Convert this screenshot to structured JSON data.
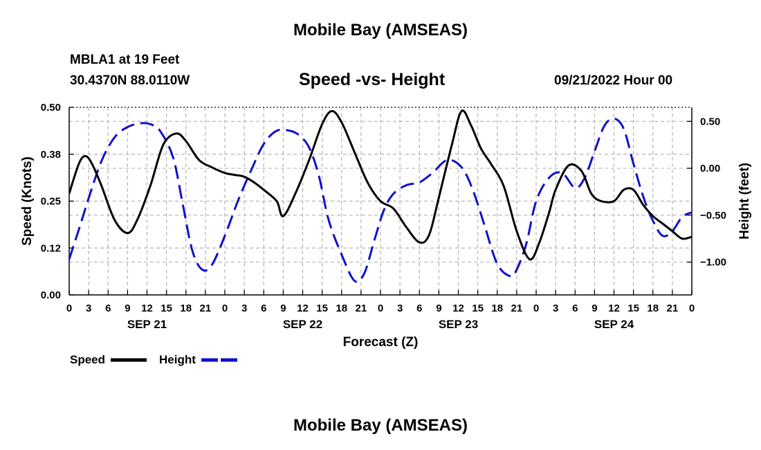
{
  "header": {
    "title": "Mobile Bay (AMSEAS)",
    "station": "MBLA1 at 19 Feet",
    "location": "30.4370N  88.0110W",
    "chart_title": "Speed -vs- Height",
    "datetime": "09/21/2022 Hour 00"
  },
  "footer": {
    "title": "Mobile Bay (AMSEAS)"
  },
  "colors": {
    "speed": "#000000",
    "height": "#1010cc",
    "grid": "#b4b4b4"
  },
  "chart_data": {
    "type": "line",
    "title": "Speed -vs- Height",
    "xlabel": "Forecast (Z)",
    "ylabel": "Speed (Knots)",
    "y2label": "Height (feet)",
    "xlim": [
      0,
      96
    ],
    "ylim": [
      0,
      0.5
    ],
    "y2lim": [
      -1.35,
      0.65
    ],
    "x_tick_labels": [
      "0",
      "3",
      "6",
      "9",
      "12",
      "15",
      "18",
      "21",
      "0",
      "3",
      "6",
      "9",
      "12",
      "15",
      "18",
      "21",
      "0",
      "3",
      "6",
      "9",
      "12",
      "15",
      "18",
      "21",
      "0",
      "3",
      "6",
      "9",
      "12",
      "15",
      "18",
      "21",
      "0"
    ],
    "day_labels": [
      {
        "x": 12,
        "label": "SEP 21"
      },
      {
        "x": 36,
        "label": "SEP 22"
      },
      {
        "x": 60,
        "label": "SEP 23"
      },
      {
        "x": 84,
        "label": "SEP 24"
      }
    ],
    "y_ticks": [
      "0.00",
      "0.12",
      "0.25",
      "0.38",
      "0.50"
    ],
    "y_tick_values": [
      0,
      0.125,
      0.25,
      0.375,
      0.5
    ],
    "y2_ticks": [
      "0.50",
      "0.00",
      "−0.50",
      "−1.00"
    ],
    "y2_tick_values": [
      0.5,
      0,
      -0.5,
      -1.0
    ],
    "grid": true,
    "legend_position": "bottom-left",
    "series": [
      {
        "name": "Speed",
        "axis": "left",
        "style": "solid",
        "x": [
          0,
          1.5,
          2.5,
          3.5,
          5,
          7,
          9,
          10.5,
          12.5,
          14.5,
          16.5,
          18,
          20,
          22,
          24,
          25.5,
          27,
          28.5,
          30,
          32,
          33,
          35,
          37,
          39,
          40.5,
          42,
          44,
          46,
          48,
          50,
          52,
          54,
          55.5,
          57,
          59,
          60.5,
          62,
          63.5,
          65,
          67,
          69,
          71,
          72.5,
          74,
          75,
          77,
          79,
          80.5,
          82,
          84,
          85.5,
          87,
          88.5,
          90,
          91.5,
          93,
          94.5,
          96
        ],
        "y": [
          0.27,
          0.35,
          0.37,
          0.35,
          0.29,
          0.2,
          0.165,
          0.2,
          0.29,
          0.4,
          0.43,
          0.41,
          0.36,
          0.34,
          0.325,
          0.32,
          0.315,
          0.3,
          0.28,
          0.25,
          0.21,
          0.275,
          0.36,
          0.455,
          0.49,
          0.46,
          0.38,
          0.3,
          0.25,
          0.23,
          0.18,
          0.14,
          0.16,
          0.26,
          0.4,
          0.49,
          0.45,
          0.39,
          0.35,
          0.29,
          0.17,
          0.095,
          0.14,
          0.22,
          0.28,
          0.345,
          0.33,
          0.27,
          0.25,
          0.25,
          0.28,
          0.28,
          0.24,
          0.21,
          0.19,
          0.17,
          0.15,
          0.155
        ]
      },
      {
        "name": "Height",
        "axis": "right",
        "style": "dashed",
        "x": [
          0,
          1.5,
          3,
          5,
          7,
          9,
          11,
          12.5,
          14,
          16,
          17.5,
          19,
          20.5,
          22,
          24,
          26,
          28,
          30,
          32,
          34,
          35.5,
          37,
          38.5,
          40,
          42,
          44,
          45.5,
          47,
          48.5,
          50,
          52,
          54,
          56,
          58,
          59.5,
          61,
          62.5,
          64,
          66,
          68,
          69,
          70.5,
          72,
          74,
          76,
          78,
          79.5,
          81,
          82.5,
          84,
          85.5,
          87,
          88.5,
          90,
          91.5,
          93,
          94.5,
          96
        ],
        "y": [
          -0.97,
          -0.65,
          -0.32,
          0.08,
          0.33,
          0.44,
          0.48,
          0.47,
          0.4,
          0.12,
          -0.38,
          -0.88,
          -1.08,
          -1.03,
          -0.72,
          -0.35,
          -0.03,
          0.26,
          0.4,
          0.4,
          0.35,
          0.22,
          -0.08,
          -0.55,
          -0.92,
          -1.2,
          -1.12,
          -0.78,
          -0.45,
          -0.27,
          -0.18,
          -0.15,
          -0.05,
          0.08,
          0.07,
          -0.04,
          -0.28,
          -0.6,
          -1.02,
          -1.15,
          -1.08,
          -0.8,
          -0.35,
          -0.1,
          -0.05,
          -0.21,
          -0.1,
          0.18,
          0.45,
          0.53,
          0.42,
          0.05,
          -0.3,
          -0.56,
          -0.72,
          -0.67,
          -0.52,
          -0.47
        ]
      }
    ]
  }
}
